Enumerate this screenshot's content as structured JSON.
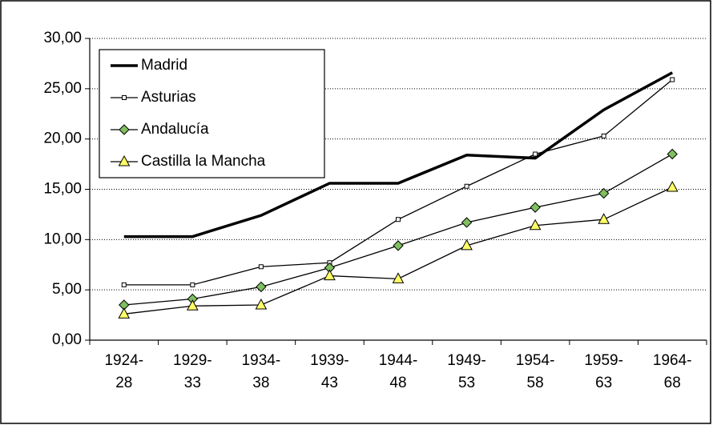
{
  "chart_data": {
    "type": "line",
    "categories": [
      "1924-\n28",
      "1929-\n33",
      "1934-\n38",
      "1939-\n43",
      "1944-\n48",
      "1949-\n53",
      "1954-\n58",
      "1959-\n63",
      "1964-\n68"
    ],
    "series": [
      {
        "name": "Madrid",
        "color": "#000000",
        "marker": "none",
        "values": [
          10.3,
          10.3,
          12.4,
          15.6,
          15.6,
          18.4,
          18.1,
          22.9,
          26.6
        ]
      },
      {
        "name": "Asturias",
        "color": "#000000",
        "marker": "square",
        "values": [
          5.5,
          5.5,
          7.3,
          7.7,
          12.0,
          15.3,
          18.5,
          20.3,
          25.9
        ]
      },
      {
        "name": "Andalucía",
        "color": "#000000",
        "marker": "diamond",
        "values": [
          3.5,
          4.1,
          5.3,
          7.2,
          9.4,
          11.7,
          13.2,
          14.6,
          18.5
        ]
      },
      {
        "name": "Castilla la Mancha",
        "color": "#000000",
        "marker": "triangle",
        "values": [
          2.6,
          3.4,
          3.5,
          6.4,
          6.1,
          9.4,
          11.4,
          12.0,
          15.2
        ]
      }
    ],
    "ylim": [
      0,
      30
    ],
    "yticks": [
      {
        "value": 0,
        "label": "0,00"
      },
      {
        "value": 5,
        "label": "5,00"
      },
      {
        "value": 10,
        "label": "10,00"
      },
      {
        "value": 15,
        "label": "15,00"
      },
      {
        "value": 20,
        "label": "20,00"
      },
      {
        "value": 25,
        "label": "25,00"
      },
      {
        "value": 30,
        "label": "30,00"
      }
    ],
    "grid": true,
    "legend": "top-left"
  }
}
